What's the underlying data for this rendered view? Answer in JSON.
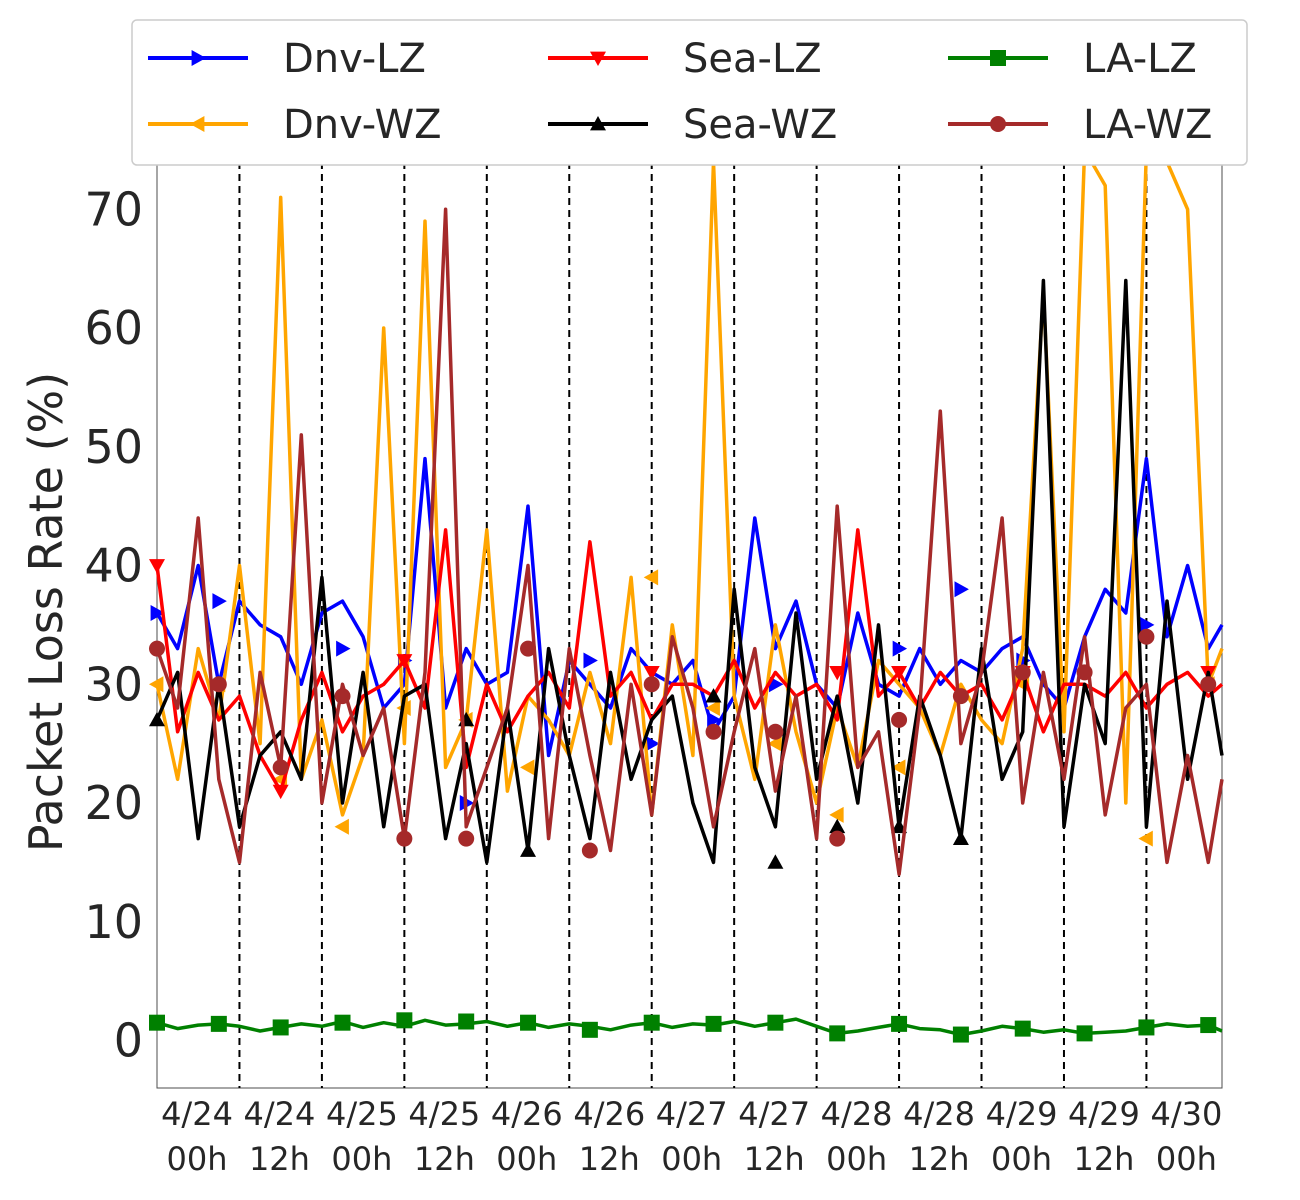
{
  "chart_data": {
    "type": "line",
    "title": "",
    "xlabel": "",
    "ylabel": "Packet Loss Rate (%)",
    "ylim": [
      -4,
      76
    ],
    "yticks": [
      0,
      10,
      20,
      30,
      40,
      50,
      60,
      70
    ],
    "grid": "vertical dashed lines every 12h",
    "legend_position": "top (above plot), 3 columns",
    "x_ticks": [
      {
        "line1": "4/24",
        "line2": "00h"
      },
      {
        "line1": "4/24",
        "line2": "12h"
      },
      {
        "line1": "4/25",
        "line2": "00h"
      },
      {
        "line1": "4/25",
        "line2": "12h"
      },
      {
        "line1": "4/26",
        "line2": "00h"
      },
      {
        "line1": "4/26",
        "line2": "12h"
      },
      {
        "line1": "4/27",
        "line2": "00h"
      },
      {
        "line1": "4/27",
        "line2": "12h"
      },
      {
        "line1": "4/28",
        "line2": "00h"
      },
      {
        "line1": "4/28",
        "line2": "12h"
      },
      {
        "line1": "4/29",
        "line2": "00h"
      },
      {
        "line1": "4/29",
        "line2": "12h"
      },
      {
        "line1": "4/30",
        "line2": "00h"
      }
    ],
    "x_unit": "hours from 4/24 00h",
    "xlim": [
      0,
      155
    ],
    "series": [
      {
        "name": "Dnv-LZ",
        "color": "#0000ff",
        "marker": "triangle-right",
        "x": [
          0,
          3,
          6,
          9,
          12,
          15,
          18,
          21,
          24,
          27,
          30,
          33,
          36,
          39,
          42,
          45,
          48,
          51,
          54,
          57,
          60,
          63,
          66,
          69,
          72,
          75,
          78,
          81,
          84,
          87,
          90,
          93,
          96,
          99,
          102,
          105,
          108,
          111,
          114,
          117,
          120,
          123,
          126,
          129,
          132,
          135,
          138,
          141,
          144,
          147,
          150,
          153,
          155
        ],
        "values": [
          36,
          33,
          40,
          30,
          37,
          35,
          34,
          30,
          36,
          37,
          34,
          28,
          30,
          49,
          28,
          33,
          30,
          31,
          45,
          24,
          32,
          30,
          28,
          33,
          31,
          30,
          32,
          26,
          29,
          44,
          33,
          37,
          30,
          28,
          36,
          30,
          29,
          33,
          30,
          32,
          31,
          33,
          34,
          30,
          28,
          34,
          38,
          36,
          49,
          34,
          40,
          33,
          35
        ]
      },
      {
        "name": "Dnv-WZ",
        "color": "#ffa500",
        "marker": "triangle-left",
        "x": [
          0,
          3,
          6,
          9,
          12,
          15,
          18,
          21,
          24,
          27,
          30,
          33,
          36,
          39,
          42,
          45,
          48,
          51,
          54,
          57,
          60,
          63,
          66,
          69,
          72,
          75,
          78,
          81,
          84,
          87,
          90,
          93,
          96,
          99,
          102,
          105,
          108,
          111,
          114,
          117,
          120,
          123,
          126,
          129,
          132,
          135,
          138,
          141,
          144,
          147,
          150,
          153,
          155
        ],
        "values": [
          30,
          22,
          33,
          27,
          40,
          25,
          71,
          22,
          27,
          19,
          24,
          60,
          25,
          69,
          23,
          27,
          43,
          21,
          29,
          27,
          24,
          31,
          25,
          39,
          19,
          35,
          24,
          74,
          29,
          22,
          35,
          26,
          20,
          28,
          23,
          32,
          30,
          28,
          24,
          30,
          27,
          25,
          33,
          63,
          26,
          75,
          72,
          20,
          75,
          74,
          70,
          30,
          33
        ]
      },
      {
        "name": "Sea-LZ",
        "color": "#ff0000",
        "marker": "triangle-down",
        "x": [
          0,
          3,
          6,
          9,
          12,
          15,
          18,
          21,
          24,
          27,
          30,
          33,
          36,
          39,
          42,
          45,
          48,
          51,
          54,
          57,
          60,
          63,
          66,
          69,
          72,
          75,
          78,
          81,
          84,
          87,
          90,
          93,
          96,
          99,
          102,
          105,
          108,
          111,
          114,
          117,
          120,
          123,
          126,
          129,
          132,
          135,
          138,
          141,
          144,
          147,
          150,
          153,
          155
        ],
        "values": [
          40,
          26,
          31,
          27,
          29,
          24,
          21,
          27,
          31,
          26,
          29,
          30,
          32,
          28,
          43,
          23,
          30,
          26,
          29,
          31,
          28,
          42,
          29,
          31,
          27,
          30,
          30,
          29,
          32,
          28,
          31,
          29,
          30,
          27,
          43,
          29,
          31,
          28,
          31,
          29,
          30,
          27,
          31,
          26,
          30,
          30,
          29,
          31,
          28,
          30,
          31,
          29,
          30
        ]
      },
      {
        "name": "Sea-WZ",
        "color": "#000000",
        "marker": "triangle-up",
        "x": [
          0,
          3,
          6,
          9,
          12,
          15,
          18,
          21,
          24,
          27,
          30,
          33,
          36,
          39,
          42,
          45,
          48,
          51,
          54,
          57,
          60,
          63,
          66,
          69,
          72,
          75,
          78,
          81,
          84,
          87,
          90,
          93,
          96,
          99,
          102,
          105,
          108,
          111,
          114,
          117,
          120,
          123,
          126,
          129,
          132,
          135,
          138,
          141,
          144,
          147,
          150,
          153,
          155
        ],
        "values": [
          27,
          31,
          17,
          30,
          18,
          24,
          26,
          22,
          39,
          20,
          31,
          18,
          29,
          30,
          17,
          25,
          15,
          28,
          16,
          33,
          24,
          17,
          31,
          22,
          27,
          29,
          20,
          15,
          38,
          23,
          18,
          36,
          22,
          29,
          20,
          35,
          18,
          29,
          24,
          17,
          33,
          22,
          26,
          64,
          18,
          30,
          25,
          64,
          18,
          37,
          22,
          31,
          24
        ]
      },
      {
        "name": "LA-LZ",
        "color": "#008000",
        "marker": "square",
        "x": [
          0,
          3,
          6,
          9,
          12,
          15,
          18,
          21,
          24,
          27,
          30,
          33,
          36,
          39,
          42,
          45,
          48,
          51,
          54,
          57,
          60,
          63,
          66,
          69,
          72,
          75,
          78,
          81,
          84,
          87,
          90,
          93,
          96,
          99,
          102,
          105,
          108,
          111,
          114,
          117,
          120,
          123,
          126,
          129,
          132,
          135,
          138,
          141,
          144,
          147,
          150,
          153,
          155
        ],
        "values": [
          1.5,
          1.0,
          1.3,
          1.4,
          1.2,
          0.8,
          1.1,
          1.4,
          1.2,
          1.6,
          1.1,
          1.5,
          1.2,
          1.7,
          1.3,
          1.4,
          1.6,
          1.2,
          1.5,
          1.1,
          1.4,
          1.2,
          0.9,
          1.3,
          1.5,
          1.1,
          1.4,
          1.3,
          1.6,
          1.2,
          1.5,
          1.8,
          1.2,
          0.6,
          0.8,
          1.1,
          1.4,
          1.0,
          0.9,
          0.5,
          0.8,
          1.2,
          1.0,
          0.7,
          0.9,
          0.6,
          0.7,
          0.8,
          1.1,
          1.4,
          1.2,
          1.3,
          0.8
        ]
      },
      {
        "name": "LA-WZ",
        "color": "#a52a2a",
        "marker": "circle",
        "x": [
          0,
          3,
          6,
          9,
          12,
          15,
          18,
          21,
          24,
          27,
          30,
          33,
          36,
          39,
          42,
          45,
          48,
          51,
          54,
          57,
          60,
          63,
          66,
          69,
          72,
          75,
          78,
          81,
          84,
          87,
          90,
          93,
          96,
          99,
          102,
          105,
          108,
          111,
          114,
          117,
          120,
          123,
          126,
          129,
          132,
          135,
          138,
          141,
          144,
          147,
          150,
          153,
          155
        ],
        "values": [
          33,
          28,
          44,
          22,
          15,
          31,
          23,
          51,
          20,
          30,
          24,
          28,
          17,
          31,
          70,
          18,
          23,
          28,
          40,
          17,
          33,
          24,
          16,
          30,
          19,
          34,
          28,
          18,
          26,
          33,
          21,
          29,
          17,
          45,
          23,
          26,
          14,
          28,
          53,
          25,
          31,
          44,
          20,
          31,
          22,
          34,
          19,
          28,
          30,
          15,
          24,
          15,
          22
        ]
      }
    ],
    "series_markers": {
      "Dnv-LZ": [
        {
          "x": 0,
          "y": 36
        },
        {
          "x": 9,
          "y": 37
        },
        {
          "x": 27,
          "y": 33
        },
        {
          "x": 36,
          "y": 32
        },
        {
          "x": 45,
          "y": 20
        },
        {
          "x": 63,
          "y": 32
        },
        {
          "x": 72,
          "y": 25
        },
        {
          "x": 81,
          "y": 27
        },
        {
          "x": 90,
          "y": 30
        },
        {
          "x": 108,
          "y": 33
        },
        {
          "x": 117,
          "y": 38
        },
        {
          "x": 126,
          "y": 32
        },
        {
          "x": 144,
          "y": 35
        }
      ],
      "Dnv-WZ": [
        {
          "x": 0,
          "y": 30
        },
        {
          "x": 9,
          "y": 30
        },
        {
          "x": 18,
          "y": 22
        },
        {
          "x": 27,
          "y": 18
        },
        {
          "x": 36,
          "y": 28
        },
        {
          "x": 45,
          "y": 27
        },
        {
          "x": 54,
          "y": 23
        },
        {
          "x": 72,
          "y": 39
        },
        {
          "x": 81,
          "y": 28
        },
        {
          "x": 90,
          "y": 25
        },
        {
          "x": 99,
          "y": 19
        },
        {
          "x": 108,
          "y": 23
        },
        {
          "x": 126,
          "y": 30
        },
        {
          "x": 144,
          "y": 17
        },
        {
          "x": 153,
          "y": 30
        }
      ],
      "Sea-LZ": [
        {
          "x": 0,
          "y": 40
        },
        {
          "x": 18,
          "y": 21
        },
        {
          "x": 36,
          "y": 32
        },
        {
          "x": 72,
          "y": 31
        },
        {
          "x": 99,
          "y": 31
        },
        {
          "x": 108,
          "y": 31
        },
        {
          "x": 126,
          "y": 31
        },
        {
          "x": 153,
          "y": 31
        }
      ],
      "Sea-WZ": [
        {
          "x": 0,
          "y": 27
        },
        {
          "x": 45,
          "y": 27
        },
        {
          "x": 54,
          "y": 16
        },
        {
          "x": 81,
          "y": 29
        },
        {
          "x": 90,
          "y": 15
        },
        {
          "x": 99,
          "y": 18
        },
        {
          "x": 108,
          "y": 18
        },
        {
          "x": 117,
          "y": 17
        }
      ],
      "LA-LZ": [
        {
          "x": 0,
          "y": 1.5
        },
        {
          "x": 9,
          "y": 1.4
        },
        {
          "x": 18,
          "y": 1.1
        },
        {
          "x": 27,
          "y": 1.5
        },
        {
          "x": 36,
          "y": 1.7
        },
        {
          "x": 45,
          "y": 1.6
        },
        {
          "x": 54,
          "y": 1.5
        },
        {
          "x": 63,
          "y": 0.9
        },
        {
          "x": 72,
          "y": 1.5
        },
        {
          "x": 81,
          "y": 1.4
        },
        {
          "x": 90,
          "y": 1.5
        },
        {
          "x": 99,
          "y": 0.6
        },
        {
          "x": 108,
          "y": 1.4
        },
        {
          "x": 117,
          "y": 0.5
        },
        {
          "x": 126,
          "y": 1.0
        },
        {
          "x": 135,
          "y": 0.6
        },
        {
          "x": 144,
          "y": 1.1
        },
        {
          "x": 153,
          "y": 1.3
        }
      ],
      "LA-WZ": [
        {
          "x": 0,
          "y": 33
        },
        {
          "x": 9,
          "y": 30
        },
        {
          "x": 18,
          "y": 23
        },
        {
          "x": 27,
          "y": 29
        },
        {
          "x": 36,
          "y": 17
        },
        {
          "x": 45,
          "y": 17
        },
        {
          "x": 54,
          "y": 33
        },
        {
          "x": 63,
          "y": 16
        },
        {
          "x": 72,
          "y": 30
        },
        {
          "x": 81,
          "y": 26
        },
        {
          "x": 90,
          "y": 26
        },
        {
          "x": 99,
          "y": 17
        },
        {
          "x": 108,
          "y": 27
        },
        {
          "x": 117,
          "y": 29
        },
        {
          "x": 126,
          "y": 31
        },
        {
          "x": 135,
          "y": 31
        },
        {
          "x": 144,
          "y": 34
        },
        {
          "x": 153,
          "y": 30
        }
      ]
    }
  }
}
